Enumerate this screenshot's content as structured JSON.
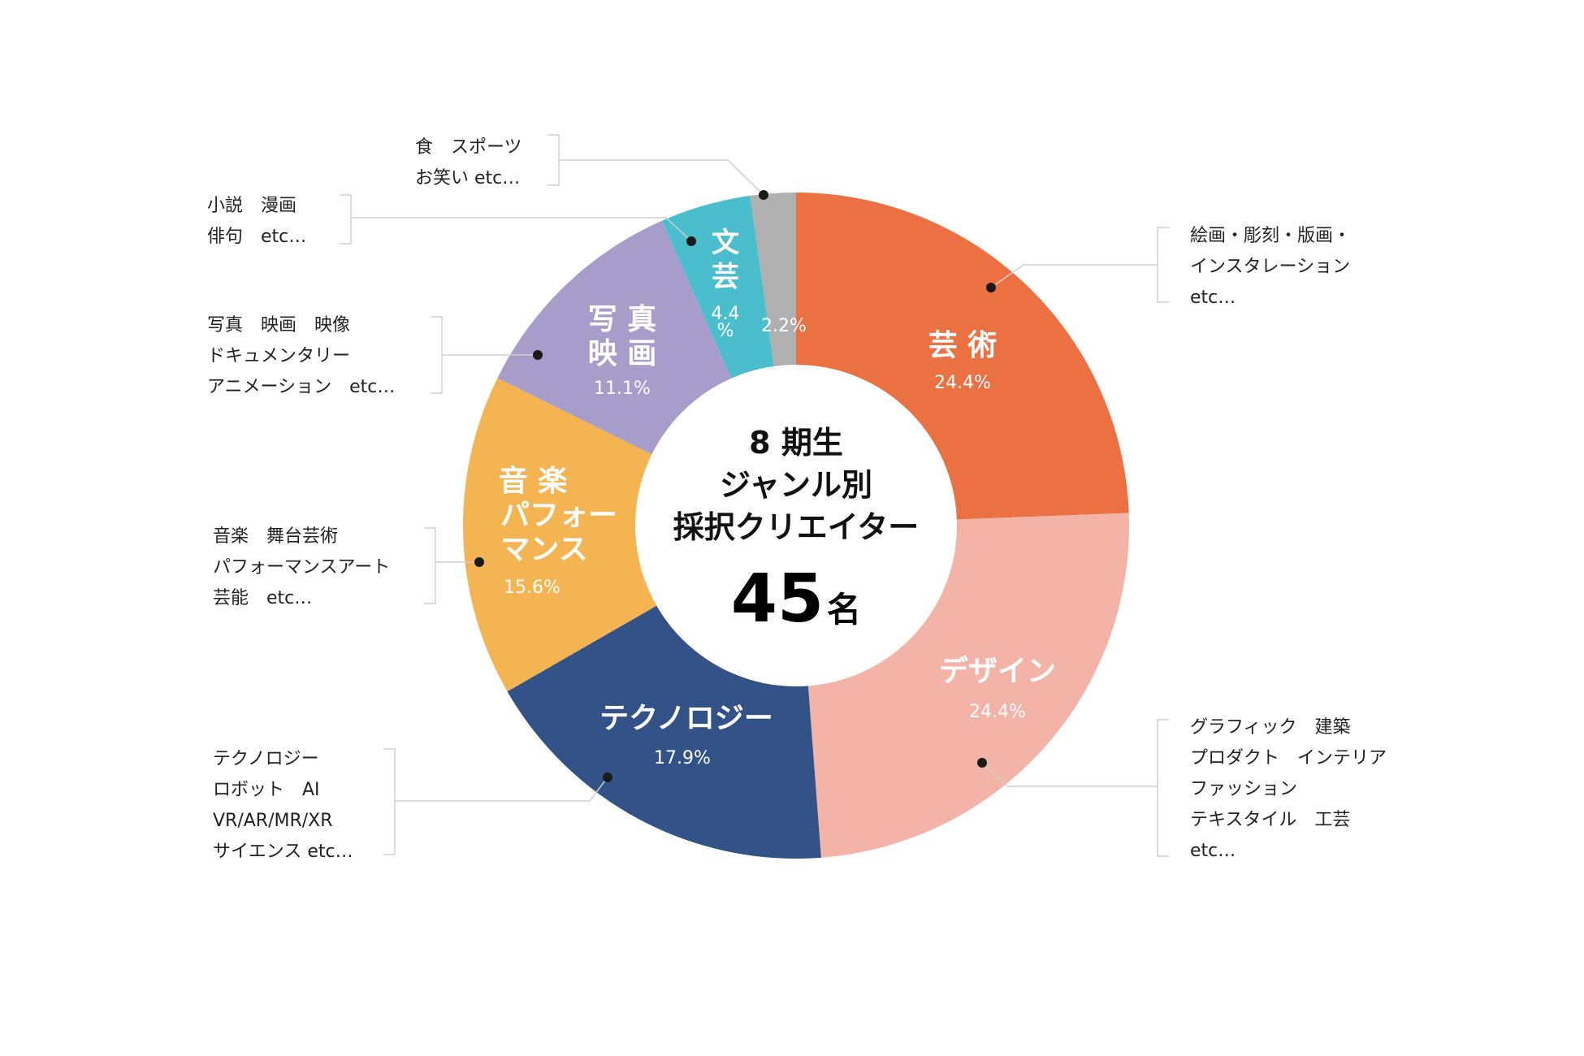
{
  "chart_data": {
    "type": "pie",
    "center": {
      "lines": [
        "8 期生",
        "ジャンル別",
        "採択クリエイター"
      ],
      "total": "45",
      "unit": "名"
    },
    "slices": [
      {
        "name": "芸術",
        "name_lines": [
          "芸 術"
        ],
        "pct": 24.4,
        "label": "24.4%",
        "color": "#EB7042",
        "note": [
          "絵画・彫刻・版画・",
          "インスタレーション",
          "etc…"
        ]
      },
      {
        "name": "デザイン",
        "name_lines": [
          "デザイン"
        ],
        "pct": 24.4,
        "label": "24.4%",
        "color": "#F3B4A7",
        "note": [
          "グラフィック　建築",
          "プロダクト　インテリア",
          "ファッション",
          "テキスタイル　工芸",
          "etc…"
        ]
      },
      {
        "name": "テクノロジー",
        "name_lines": [
          "テクノロジー"
        ],
        "pct": 17.9,
        "label": "17.9%",
        "color": "#335288",
        "note": [
          "テクノロジー",
          "ロボット　AI",
          "VR/AR/MR/XR",
          "サイエンス etc…"
        ]
      },
      {
        "name": "音楽パフォーマンス",
        "name_lines": [
          "音 楽",
          "パフォー",
          "マンス"
        ],
        "pct": 15.6,
        "label": "15.6%",
        "color": "#F5B452",
        "note": [
          "音楽　舞台芸術",
          "パフォーマンスアート",
          "芸能　etc…"
        ]
      },
      {
        "name": "写真映画",
        "name_lines": [
          "写 真",
          "映 画"
        ],
        "pct": 11.1,
        "label": "11.1%",
        "color": "#A69DCB",
        "note": [
          "写真　映画　映像",
          "ドキュメンタリー",
          "アニメーション　etc…"
        ]
      },
      {
        "name": "文芸",
        "name_lines": [
          "文",
          "芸"
        ],
        "pct": 4.4,
        "label_lines": [
          "4.4",
          "%"
        ],
        "color": "#4BBECD",
        "note": [
          "小説　漫画",
          "俳句　etc…"
        ]
      },
      {
        "name": "",
        "name_lines": [],
        "pct": 2.2,
        "label": "2.2%",
        "color": "#B0B0B0",
        "note": [
          "食　スポーツ",
          "お笑い etc…"
        ]
      }
    ]
  }
}
